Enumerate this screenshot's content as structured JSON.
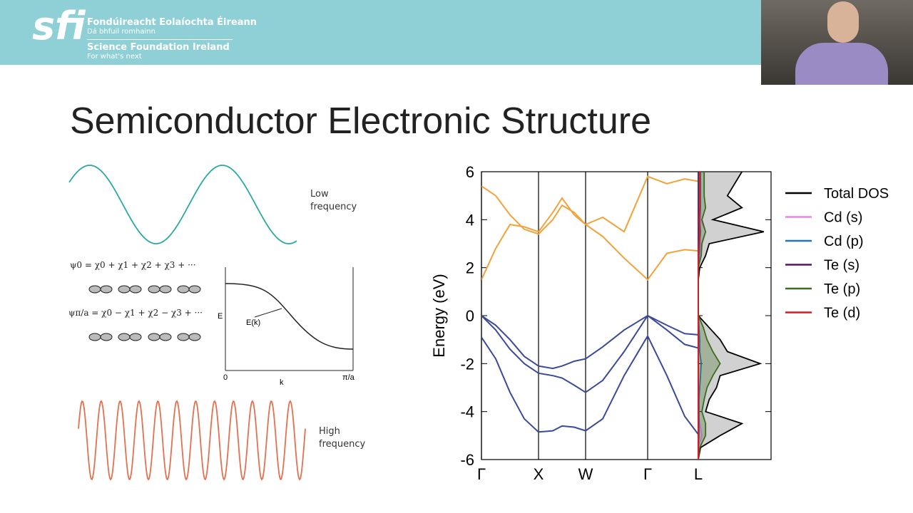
{
  "header": {
    "logo": "sfi",
    "irish_name": "Fondúireacht Eolaíochta Éireann",
    "irish_motto": "Dá bhfuil romhainn",
    "english_name": "Science Foundation Ireland",
    "english_motto": "For what's next"
  },
  "slide": {
    "title": "Semiconductor Electronic Structure",
    "low_label": "Low frequency",
    "high_label": "High frequency",
    "psi0": "ψ0 = χ0 + χ1 + χ2 + χ3 + ···",
    "psi_pi": "ψπ/a = χ0 − χ1 + χ2 − χ3 + ···",
    "ek_axis_e": "E",
    "ek_curve": "E(k)",
    "ek_origin": "0",
    "ek_axis_k": "k",
    "ek_end": "π/a"
  },
  "chart_data": [
    {
      "type": "line",
      "y_label": "Energy (eV)",
      "x": [
        0,
        0.2,
        0.4,
        0.6,
        0.8,
        1.0,
        1.13,
        1.3,
        1.46,
        1.7,
        2.0,
        2.33,
        2.6,
        2.85,
        3.04
      ],
      "series": [
        {
          "color": "#f2a23a",
          "values": [
            1.5,
            2.8,
            3.8,
            3.7,
            3.5,
            4.3,
            4.9,
            4.2,
            3.8,
            3.3,
            2.4,
            1.5,
            2.6,
            2.75,
            2.7
          ]
        },
        {
          "color": "#f2a23a",
          "values": [
            5.4,
            5.0,
            4.2,
            3.6,
            3.4,
            4.0,
            4.6,
            4.3,
            3.8,
            4.1,
            3.5,
            5.8,
            5.5,
            5.7,
            5.6
          ]
        },
        {
          "color": "#3b4a9a",
          "values": [
            -0.9,
            -1.8,
            -3.2,
            -4.3,
            -4.85,
            -4.8,
            -4.6,
            -4.65,
            -4.8,
            -4.3,
            -2.5,
            -0.85,
            -2.5,
            -4.2,
            -4.95
          ]
        },
        {
          "color": "#3b4a9a",
          "values": [
            0,
            -0.6,
            -1.4,
            -2.0,
            -2.4,
            -2.5,
            -2.6,
            -2.9,
            -3.2,
            -2.7,
            -1.5,
            0,
            -0.6,
            -1.2,
            -1.35
          ]
        },
        {
          "color": "#3b4a9a",
          "values": [
            0,
            -0.4,
            -1.0,
            -1.7,
            -2.1,
            -2.2,
            -2.1,
            -1.9,
            -1.8,
            -1.3,
            -0.6,
            0,
            -0.4,
            -0.75,
            -0.8
          ]
        }
      ],
      "xlim": [
        0,
        3.04
      ],
      "ylim": [
        -6,
        6
      ],
      "yticks": [
        -6,
        -4,
        -2,
        0,
        2,
        4,
        6
      ],
      "xticks": [
        {
          "value": 0,
          "label": "Γ"
        },
        {
          "value": 0.8,
          "label": "X"
        },
        {
          "value": 1.46,
          "label": "W"
        },
        {
          "value": 2.33,
          "label": "Γ"
        },
        {
          "value": 3.04,
          "label": "L"
        }
      ]
    },
    {
      "type": "area",
      "legend": "upper right",
      "y": [
        -6,
        -5.5,
        -5,
        -4.5,
        -4,
        -3.5,
        -3,
        -2.5,
        -2,
        -1.5,
        -1,
        -0.5,
        0,
        0.5,
        1,
        1.5,
        2,
        2.5,
        3,
        3.5,
        4,
        4.5,
        5,
        5.5,
        6
      ],
      "series": [
        {
          "name": "Total DOS",
          "color": "#000000",
          "values": [
            0,
            0.03,
            0.3,
            0.6,
            0.1,
            0.15,
            0.25,
            0.3,
            0.85,
            0.4,
            0.3,
            0.15,
            0,
            0,
            0,
            0,
            0.02,
            0.1,
            0.15,
            0.9,
            0.2,
            0.6,
            0.4,
            0.5,
            0.6
          ]
        },
        {
          "name": "Cd (s)",
          "color": "#ee82ee",
          "values": [
            0,
            0,
            0.05,
            0.02,
            0,
            0,
            0,
            0,
            0,
            0,
            0,
            0,
            0,
            0,
            0,
            0,
            0,
            0.02,
            0.04,
            0.1,
            0.03,
            0.03,
            0.02,
            0.02,
            0.02
          ]
        },
        {
          "name": "Cd (p)",
          "color": "#1f77b4",
          "values": [
            0,
            0,
            0.01,
            0.01,
            0.01,
            0.01,
            0.02,
            0.03,
            0.04,
            0.02,
            0.02,
            0.01,
            0,
            0,
            0,
            0,
            0,
            0.01,
            0.02,
            0.03,
            0.02,
            0.03,
            0.03,
            0.03,
            0.03
          ]
        },
        {
          "name": "Te (s)",
          "color": "#4b1a5e",
          "values": [
            0,
            0,
            0,
            0,
            0,
            0,
            0,
            0,
            0,
            0,
            0,
            0,
            0,
            0,
            0,
            0,
            0,
            0,
            0,
            0,
            0,
            0,
            0,
            0,
            0
          ]
        },
        {
          "name": "Te (p)",
          "color": "#3d6b1f",
          "values": [
            0,
            0.02,
            0.1,
            0.1,
            0.05,
            0.08,
            0.12,
            0.2,
            0.3,
            0.2,
            0.12,
            0.07,
            0,
            0,
            0,
            0,
            0,
            0.04,
            0.05,
            0.1,
            0.05,
            0.1,
            0.08,
            0.08,
            0.08
          ]
        },
        {
          "name": "Te (d)",
          "color": "#e8141d",
          "values": [
            0,
            0,
            0,
            0,
            0,
            0,
            0,
            0,
            0,
            0,
            0,
            0,
            0,
            0,
            0,
            0,
            0,
            0,
            0.01,
            0.02,
            0.01,
            0.02,
            0.02,
            0.02,
            0.02
          ]
        }
      ],
      "xlim": [
        0,
        1
      ],
      "ylim": [
        -6,
        6
      ]
    }
  ]
}
